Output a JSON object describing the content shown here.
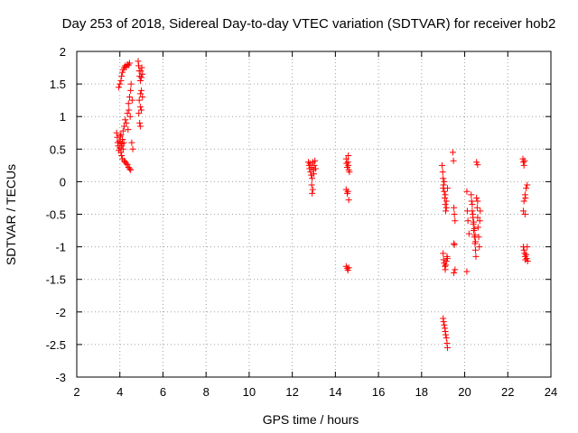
{
  "chart_data": {
    "type": "scatter",
    "title": "Day 253 of 2018, Sidereal Day-to-day VTEC variation (SDTVAR) for receiver hob2",
    "xlabel": "GPS time / hours",
    "ylabel": "SDTVAR / TECUs",
    "xlim": [
      2,
      24
    ],
    "ylim": [
      -3,
      2
    ],
    "grid": true,
    "marker": "plus",
    "marker_color": "#ff0000",
    "x_ticks": [
      {
        "value": 2,
        "label": "2"
      },
      {
        "value": 4,
        "label": "4"
      },
      {
        "value": 6,
        "label": "6"
      },
      {
        "value": 8,
        "label": "8"
      },
      {
        "value": 10,
        "label": "10"
      },
      {
        "value": 12,
        "label": "12"
      },
      {
        "value": 14,
        "label": "14"
      },
      {
        "value": 16,
        "label": "16"
      },
      {
        "value": 18,
        "label": "18"
      },
      {
        "value": 20,
        "label": "20"
      },
      {
        "value": 22,
        "label": "22"
      },
      {
        "value": 24,
        "label": "24"
      }
    ],
    "y_ticks": [
      {
        "value": 2,
        "label": "2"
      },
      {
        "value": 1.5,
        "label": "1.5"
      },
      {
        "value": 1,
        "label": "1"
      },
      {
        "value": 0.5,
        "label": "0.5"
      },
      {
        "value": 0,
        "label": "0"
      },
      {
        "value": -0.5,
        "label": "-0.5"
      },
      {
        "value": -1,
        "label": "-1"
      },
      {
        "value": -1.5,
        "label": "-1.5"
      },
      {
        "value": -2,
        "label": "-2"
      },
      {
        "value": -2.5,
        "label": "-2.5"
      },
      {
        "value": -3,
        "label": "-3"
      }
    ],
    "series": [
      {
        "name": "SDTVAR",
        "points": [
          [
            3.85,
            0.75
          ],
          [
            3.88,
            0.68
          ],
          [
            3.9,
            0.6
          ],
          [
            3.92,
            0.55
          ],
          [
            3.95,
            0.48
          ],
          [
            3.97,
            0.62
          ],
          [
            4.0,
            0.52
          ],
          [
            4.02,
            0.7
          ],
          [
            4.05,
            0.45
          ],
          [
            4.08,
            0.4
          ],
          [
            4.1,
            0.58
          ],
          [
            4.12,
            0.35
          ],
          [
            4.15,
            0.5
          ],
          [
            4.2,
            0.32
          ],
          [
            4.25,
            0.3
          ],
          [
            4.3,
            0.28
          ],
          [
            4.35,
            0.26
          ],
          [
            4.4,
            0.22
          ],
          [
            4.45,
            0.2
          ],
          [
            4.5,
            0.18
          ],
          [
            4.02,
            0.6
          ],
          [
            4.05,
            0.72
          ],
          [
            4.08,
            0.55
          ],
          [
            4.12,
            0.65
          ],
          [
            4.15,
            0.78
          ],
          [
            4.18,
            0.6
          ],
          [
            4.2,
            0.85
          ],
          [
            4.25,
            0.95
          ],
          [
            4.3,
            0.9
          ],
          [
            4.35,
            1.05
          ],
          [
            4.38,
            0.8
          ],
          [
            4.4,
            1.2
          ],
          [
            4.42,
            1.1
          ],
          [
            4.45,
            1.3
          ],
          [
            4.48,
            1.0
          ],
          [
            4.5,
            1.4
          ],
          [
            4.52,
            1.5
          ],
          [
            4.55,
            0.6
          ],
          [
            4.57,
            1.25
          ],
          [
            4.6,
            0.5
          ],
          [
            3.95,
            1.45
          ],
          [
            4.0,
            1.5
          ],
          [
            4.05,
            1.55
          ],
          [
            4.08,
            1.62
          ],
          [
            4.12,
            1.68
          ],
          [
            4.15,
            1.72
          ],
          [
            4.2,
            1.75
          ],
          [
            4.25,
            1.78
          ],
          [
            4.3,
            1.76
          ],
          [
            4.35,
            1.8
          ],
          [
            4.4,
            1.79
          ],
          [
            4.45,
            1.82
          ],
          [
            4.85,
            1.85
          ],
          [
            4.87,
            1.78
          ],
          [
            4.9,
            1.7
          ],
          [
            4.92,
            1.62
          ],
          [
            4.95,
            1.55
          ],
          [
            4.97,
            1.7
          ],
          [
            5.0,
            1.6
          ],
          [
            5.02,
            1.75
          ],
          [
            5.05,
            1.65
          ],
          [
            5.0,
            1.4
          ],
          [
            4.95,
            1.35
          ],
          [
            4.9,
            1.25
          ],
          [
            4.95,
            1.15
          ],
          [
            5.0,
            1.1
          ],
          [
            5.05,
            1.3
          ],
          [
            4.88,
            1.05
          ],
          [
            4.92,
            0.9
          ],
          [
            4.95,
            0.85
          ],
          [
            12.75,
            0.3
          ],
          [
            12.78,
            0.25
          ],
          [
            12.8,
            0.2
          ],
          [
            12.82,
            0.28
          ],
          [
            12.85,
            0.15
          ],
          [
            12.88,
            0.1
          ],
          [
            12.9,
            0.22
          ],
          [
            12.92,
            0.05
          ],
          [
            12.95,
            0.3
          ],
          [
            12.98,
            0.18
          ],
          [
            13.0,
            0.12
          ],
          [
            13.02,
            0.25
          ],
          [
            13.05,
            0.32
          ],
          [
            13.08,
            0.2
          ],
          [
            12.9,
            -0.05
          ],
          [
            12.95,
            -0.12
          ],
          [
            12.92,
            -0.18
          ],
          [
            14.5,
            0.35
          ],
          [
            14.52,
            0.28
          ],
          [
            14.55,
            0.22
          ],
          [
            14.58,
            0.3
          ],
          [
            14.6,
            0.25
          ],
          [
            14.62,
            0.18
          ],
          [
            14.65,
            0.15
          ],
          [
            14.6,
            0.4
          ],
          [
            14.5,
            -0.12
          ],
          [
            14.55,
            -0.18
          ],
          [
            14.58,
            -0.15
          ],
          [
            14.62,
            -0.28
          ],
          [
            14.5,
            -1.3
          ],
          [
            14.55,
            -1.33
          ],
          [
            14.58,
            -1.36
          ],
          [
            14.62,
            -1.32
          ],
          [
            18.95,
            0.25
          ],
          [
            18.98,
            0.15
          ],
          [
            19.0,
            0.05
          ],
          [
            19.02,
            -0.05
          ],
          [
            19.05,
            -0.15
          ],
          [
            19.08,
            -0.25
          ],
          [
            19.1,
            -0.35
          ],
          [
            19.12,
            -0.45
          ],
          [
            19.15,
            -0.3
          ],
          [
            19.0,
            -0.1
          ],
          [
            19.05,
            0.0
          ],
          [
            19.1,
            -0.2
          ],
          [
            19.15,
            -0.4
          ],
          [
            19.2,
            -0.1
          ],
          [
            19.0,
            -1.1
          ],
          [
            19.02,
            -1.2
          ],
          [
            19.05,
            -1.25
          ],
          [
            19.08,
            -1.3
          ],
          [
            19.1,
            -1.35
          ],
          [
            19.12,
            -1.28
          ],
          [
            19.15,
            -1.22
          ],
          [
            19.18,
            -1.15
          ],
          [
            19.2,
            -1.18
          ],
          [
            19.0,
            -2.1
          ],
          [
            19.02,
            -2.15
          ],
          [
            19.05,
            -2.2
          ],
          [
            19.08,
            -2.25
          ],
          [
            19.1,
            -2.3
          ],
          [
            19.12,
            -2.35
          ],
          [
            19.15,
            -2.4
          ],
          [
            19.18,
            -2.48
          ],
          [
            19.2,
            -2.55
          ],
          [
            19.45,
            0.45
          ],
          [
            19.48,
            0.32
          ],
          [
            19.5,
            -0.4
          ],
          [
            19.52,
            -0.5
          ],
          [
            19.55,
            -0.6
          ],
          [
            19.5,
            -0.95
          ],
          [
            19.52,
            -0.97
          ],
          [
            19.55,
            -1.35
          ],
          [
            19.5,
            -1.4
          ],
          [
            20.1,
            -0.15
          ],
          [
            20.12,
            -0.45
          ],
          [
            20.15,
            -0.6
          ],
          [
            20.2,
            -0.8
          ],
          [
            20.1,
            -1.38
          ],
          [
            20.3,
            -0.2
          ],
          [
            20.32,
            -0.3
          ],
          [
            20.35,
            -0.45
          ],
          [
            20.38,
            -0.55
          ],
          [
            20.4,
            -0.65
          ],
          [
            20.42,
            -0.75
          ],
          [
            20.45,
            -0.85
          ],
          [
            20.48,
            -0.95
          ],
          [
            20.5,
            -1.05
          ],
          [
            20.52,
            -1.15
          ],
          [
            20.35,
            -0.35
          ],
          [
            20.38,
            -0.5
          ],
          [
            20.42,
            -0.62
          ],
          [
            20.45,
            -0.72
          ],
          [
            20.48,
            -0.82
          ],
          [
            20.5,
            -0.92
          ],
          [
            20.55,
            -0.25
          ],
          [
            20.58,
            -0.4
          ],
          [
            20.6,
            -0.55
          ],
          [
            20.62,
            -0.7
          ],
          [
            20.65,
            -0.85
          ],
          [
            20.68,
            -1.0
          ],
          [
            20.7,
            -0.6
          ],
          [
            20.72,
            -0.45
          ],
          [
            20.6,
            -0.3
          ],
          [
            20.55,
            0.3
          ],
          [
            20.6,
            0.26
          ],
          [
            22.7,
            0.35
          ],
          [
            22.72,
            0.3
          ],
          [
            22.75,
            0.25
          ],
          [
            22.78,
            0.32
          ],
          [
            22.8,
            -0.2
          ],
          [
            22.82,
            -0.25
          ],
          [
            22.75,
            -0.3
          ],
          [
            22.72,
            -0.45
          ],
          [
            22.8,
            -0.5
          ],
          [
            22.85,
            -0.1
          ],
          [
            22.9,
            -0.05
          ],
          [
            22.72,
            -1.0
          ],
          [
            22.75,
            -1.05
          ],
          [
            22.78,
            -1.1
          ],
          [
            22.8,
            -1.15
          ],
          [
            22.82,
            -1.2
          ],
          [
            22.85,
            -1.12
          ],
          [
            22.88,
            -1.18
          ],
          [
            22.9,
            -1.0
          ],
          [
            22.92,
            -1.22
          ]
        ]
      }
    ]
  }
}
